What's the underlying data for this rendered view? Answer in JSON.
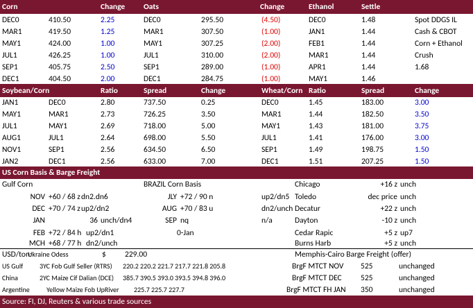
{
  "header1": [
    "Corn",
    "Change",
    "Oats",
    "Change",
    "Ethanol",
    "Settle"
  ],
  "corn_oats_ethanol": {
    "rows": [
      [
        "DEC0",
        "410.50",
        "2.25",
        "DEC0",
        "295.50",
        "(4.50)",
        "DEC0",
        "1.48",
        "Spot DDGS IL"
      ],
      [
        "MAR1",
        "419.50",
        "1.25",
        "MAR1",
        "307.50",
        "(1.00)",
        "JAN1",
        "1.44",
        "Cash & CBOT"
      ],
      [
        "MAY1",
        "424.00",
        "1.00",
        "MAY1",
        "307.25",
        "(2.00)",
        "FEB1",
        "1.44",
        "Corn + Ethanol"
      ],
      [
        "JUL1",
        "426.25",
        "1.00",
        "JUL1",
        "310.00",
        "(2.00)",
        "MAR1",
        "1.44",
        "Crush"
      ],
      [
        "SEP1",
        "405.75",
        "2.50",
        "SEP1",
        "289.00",
        "(1.00)",
        "APR1",
        "1.44",
        "1.68"
      ],
      [
        "DEC1",
        "404.50",
        "2.00",
        "DEC1",
        "284.75",
        "(1.00)",
        "MAY1",
        "1.46"
      ]
    ]
  },
  "header2": [
    "Soybean/Corn",
    "Ratio",
    "Spread",
    "Change",
    "Wheat/Corn",
    "Ratio",
    "Spread",
    "Change"
  ],
  "spreads": {
    "rows": [
      [
        "JAN1",
        "DEC0",
        "2.80",
        "737.50",
        "0.25",
        "DEC0",
        "1.45",
        "183.00",
        "3.00"
      ],
      [
        "MAY1",
        "MAR1",
        "2.73",
        "726.25",
        "3.50",
        "MAR1",
        "1.44",
        "182.50",
        "3.50"
      ],
      [
        "JUL1",
        "MAY1",
        "2.69",
        "718.00",
        "5.00",
        "MAY1",
        "1.43",
        "181.00",
        "3.75"
      ],
      [
        "AUG1",
        "JUL1",
        "2.64",
        "698.00",
        "5.50",
        "JUL1",
        "1.41",
        "176.00",
        "3.00"
      ],
      [
        "NOV1",
        "SEP1",
        "2.56",
        "634.50",
        "6.50",
        "SEP1",
        "1.49",
        "198.75",
        "1.50"
      ],
      [
        "JAN2",
        "DEC1",
        "2.56",
        "633.00",
        "7.00",
        "DEC1",
        "1.51",
        "207.25",
        "1.50"
      ]
    ]
  },
  "basis_title": "US Corn Basis & Barge Freight",
  "basis": {
    "rows": [
      [
        "Gulf Corn",
        "BRAZIL Corn Basis",
        "Chicago",
        "+16 z",
        "unch"
      ],
      [
        "NOV",
        "+60 / 68 z",
        "dn2.dn6",
        "JLY",
        "+72 / 90 n",
        "up2/dn5",
        "Toledo",
        "dec price",
        "unch"
      ],
      [
        "DEC",
        "+70 / 74 z",
        "up2/dn2",
        "AUG",
        "+70 / 83 u",
        "dn2/unch",
        "Decatur",
        "+22 z",
        "unch"
      ],
      [
        "JAN",
        "36",
        "unch/dn4",
        "SEP",
        "nq",
        "n/a",
        "Dayton",
        "-10 z",
        "unch"
      ],
      [
        "FEB",
        "+72 / 84 h",
        "up2/dn1",
        "0-Jan",
        "Cedar Rapic",
        "+5 z",
        "up7"
      ],
      [
        "MCH",
        "+68 / 77 h",
        "dn2/unch",
        "Burns Harb",
        "+5 z",
        "unch"
      ]
    ]
  },
  "freight": {
    "rows": [
      [
        "USD/ton:",
        "Ukraine Odess",
        "$",
        "229.00",
        "Memphis-Cairo Barge Freight (offer)"
      ],
      [
        "US Gulf",
        "3YC Fob Gulf Seller (RTRS)",
        "220.2 220.2 221.7 217.7 221.8 205.8",
        "BrgF MTCT NOV",
        "525",
        "unchanged"
      ],
      [
        "China",
        "2YC Maize Cif Dalian (DCE)",
        "385.7 390.5 393.0 393.5 394.8 396.0",
        "BrgF MTCT DEC",
        "525",
        "unchanged"
      ],
      [
        "Argentine",
        "Yellow Maize Fob UpRiver",
        "225.7 225.7 227.7",
        "BrgF MTCT FH JAN",
        "350",
        "unchanged"
      ]
    ]
  },
  "footer": "Source: FI, DJ, Reuters & various trade sources"
}
